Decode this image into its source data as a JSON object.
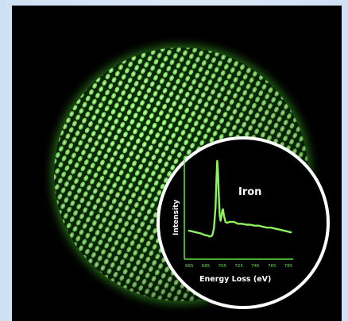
{
  "colors": {
    "glow": "#62e640",
    "background": "#000000",
    "frame": "#d6e5f7",
    "inset_ring": "#ffffff"
  },
  "inset": {
    "title": "Iron",
    "ylabel": "Intensity",
    "xlabel": "Energy Loss (eV)",
    "ticks": [
      "665",
      "685",
      "705",
      "725",
      "745",
      "765",
      "785"
    ]
  },
  "spectrum": [
    [
      665,
      0.28
    ],
    [
      670,
      0.27
    ],
    [
      675,
      0.26
    ],
    [
      680,
      0.25
    ],
    [
      683,
      0.24
    ],
    [
      686,
      0.23
    ],
    [
      688,
      0.23
    ],
    [
      690,
      0.22
    ],
    [
      692,
      0.22
    ],
    [
      694,
      0.23
    ],
    [
      696,
      0.3
    ],
    [
      698,
      0.52
    ],
    [
      699,
      0.8
    ],
    [
      700,
      1.0
    ],
    [
      701,
      0.88
    ],
    [
      702,
      0.62
    ],
    [
      703,
      0.44
    ],
    [
      704,
      0.38
    ],
    [
      705,
      0.42
    ],
    [
      706,
      0.48
    ],
    [
      707,
      0.5
    ],
    [
      708,
      0.44
    ],
    [
      710,
      0.37
    ],
    [
      712,
      0.36
    ],
    [
      715,
      0.37
    ],
    [
      720,
      0.37
    ],
    [
      725,
      0.35
    ],
    [
      730,
      0.35
    ],
    [
      735,
      0.34
    ],
    [
      740,
      0.34
    ],
    [
      745,
      0.33
    ],
    [
      750,
      0.33
    ],
    [
      755,
      0.32
    ],
    [
      760,
      0.31
    ],
    [
      765,
      0.31
    ],
    [
      770,
      0.3
    ],
    [
      775,
      0.29
    ],
    [
      780,
      0.28
    ],
    [
      785,
      0.27
    ],
    [
      790,
      0.26
    ]
  ]
}
